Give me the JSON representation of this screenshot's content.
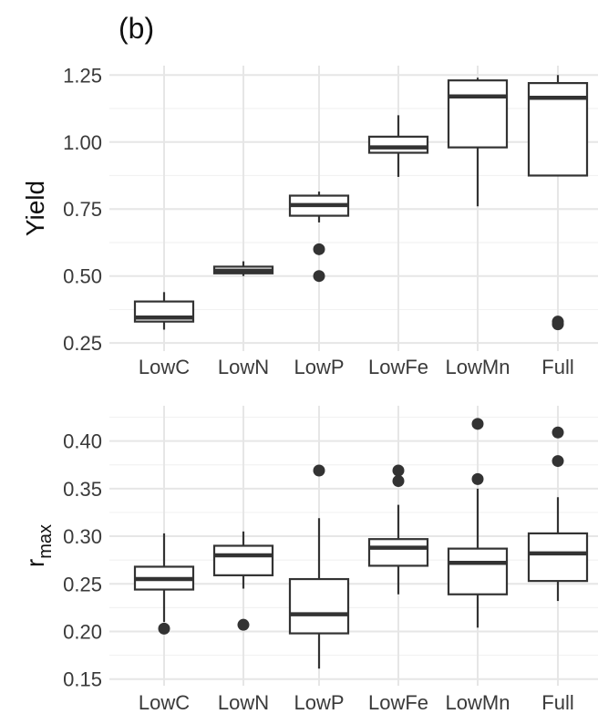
{
  "panel_label": "(b)",
  "colors": {
    "grid_major": "#e6e6e6",
    "grid_minor": "#f2f2f2",
    "box": "#333333",
    "text": "#3a3a3a"
  },
  "chart_data": [
    {
      "type": "box",
      "title": "",
      "xlabel": "",
      "ylabel": "Yield",
      "ylim": [
        0.25,
        1.25
      ],
      "yticks": [
        "0.25",
        "0.50",
        "0.75",
        "1.00",
        "1.25"
      ],
      "grid": true,
      "categories": [
        "LowC",
        "LowN",
        "LowP",
        "LowFe",
        "LowMn",
        "Full"
      ],
      "boxes": [
        {
          "category": "LowC",
          "whisker_low": 0.3,
          "q1": 0.33,
          "median": 0.345,
          "q3": 0.405,
          "whisker_high": 0.44,
          "outliers": []
        },
        {
          "category": "LowN",
          "whisker_low": 0.5,
          "q1": 0.51,
          "median": 0.52,
          "q3": 0.535,
          "whisker_high": 0.555,
          "outliers": []
        },
        {
          "category": "LowP",
          "whisker_low": 0.7,
          "q1": 0.725,
          "median": 0.765,
          "q3": 0.8,
          "whisker_high": 0.815,
          "outliers": [
            0.6,
            0.5
          ]
        },
        {
          "category": "LowFe",
          "whisker_low": 0.87,
          "q1": 0.96,
          "median": 0.98,
          "q3": 1.02,
          "whisker_high": 1.1,
          "outliers": []
        },
        {
          "category": "LowMn",
          "whisker_low": 0.76,
          "q1": 0.98,
          "median": 1.17,
          "q3": 1.23,
          "whisker_high": 1.24,
          "outliers": []
        },
        {
          "category": "Full",
          "whisker_low": 0.875,
          "q1": 0.875,
          "median": 1.165,
          "q3": 1.22,
          "whisker_high": 1.25,
          "outliers": [
            0.33,
            0.32
          ]
        }
      ]
    },
    {
      "type": "box",
      "title": "",
      "xlabel": "",
      "ylabel": "r",
      "ylabel_subscript": "max",
      "ylim": [
        0.15,
        0.42
      ],
      "yticks": [
        "0.15",
        "0.20",
        "0.25",
        "0.30",
        "0.35",
        "0.40"
      ],
      "grid": true,
      "categories": [
        "LowC",
        "LowN",
        "LowP",
        "LowFe",
        "LowMn",
        "Full"
      ],
      "boxes": [
        {
          "category": "LowC",
          "whisker_low": 0.21,
          "q1": 0.244,
          "median": 0.255,
          "q3": 0.268,
          "whisker_high": 0.303,
          "outliers": [
            0.203
          ]
        },
        {
          "category": "LowN",
          "whisker_low": 0.245,
          "q1": 0.259,
          "median": 0.28,
          "q3": 0.29,
          "whisker_high": 0.305,
          "outliers": [
            0.207
          ]
        },
        {
          "category": "LowP",
          "whisker_low": 0.161,
          "q1": 0.198,
          "median": 0.218,
          "q3": 0.255,
          "whisker_high": 0.319,
          "outliers": [
            0.369
          ]
        },
        {
          "category": "LowFe",
          "whisker_low": 0.239,
          "q1": 0.269,
          "median": 0.288,
          "q3": 0.297,
          "whisker_high": 0.333,
          "outliers": [
            0.369,
            0.358
          ]
        },
        {
          "category": "LowMn",
          "whisker_low": 0.204,
          "q1": 0.239,
          "median": 0.272,
          "q3": 0.287,
          "whisker_high": 0.35,
          "outliers": [
            0.418,
            0.36
          ]
        },
        {
          "category": "Full",
          "whisker_low": 0.232,
          "q1": 0.253,
          "median": 0.282,
          "q3": 0.303,
          "whisker_high": 0.341,
          "outliers": [
            0.409,
            0.379
          ]
        }
      ]
    }
  ]
}
